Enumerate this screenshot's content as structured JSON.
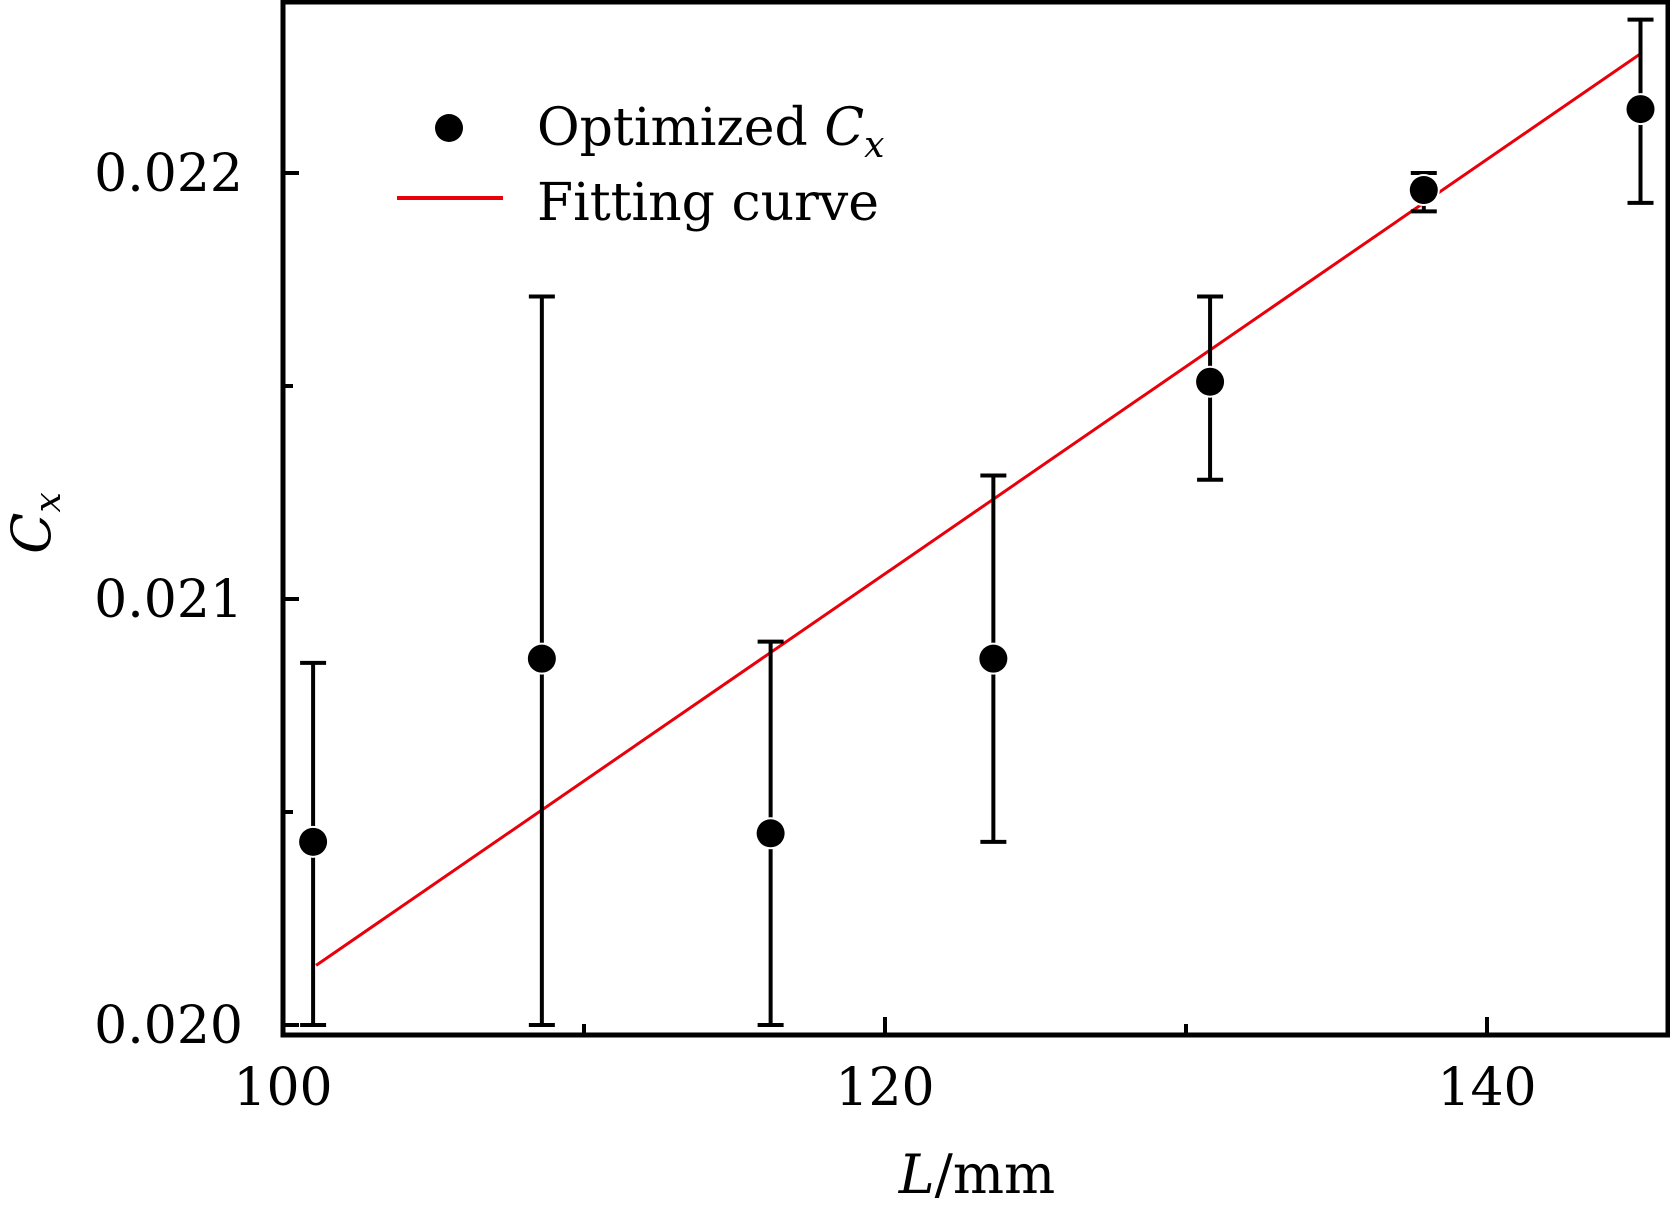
{
  "chart_data": {
    "type": "scatter",
    "title": "",
    "xlabel": {
      "main": "L",
      "unit": "/mm"
    },
    "ylabel": {
      "main": "C",
      "sub": "x"
    },
    "xlim": [
      100,
      146
    ],
    "ylim": [
      0.01998,
      0.0224
    ],
    "xticks": {
      "major": [
        100,
        120,
        140
      ],
      "minor": [
        110,
        130
      ],
      "labels": [
        "100",
        "120",
        "140"
      ]
    },
    "yticks": {
      "major": [
        0.02,
        0.021,
        0.022
      ],
      "minor": [
        0.0205,
        0.0215
      ],
      "labels": [
        "0.020",
        "0.021",
        "0.022"
      ]
    },
    "grid": false,
    "legend": {
      "placement": "top-left",
      "entries": [
        {
          "label_main": "Optimized ",
          "label_math": "C",
          "label_sub": "x",
          "marker": "filled-circle",
          "color": "#000000"
        },
        {
          "label_main": "Fitting curve",
          "marker": "line",
          "color": "#e8000b"
        }
      ]
    },
    "series": [
      {
        "name": "Optimized Cx",
        "type": "scatter-errorbar",
        "color": "#000000",
        "points": [
          {
            "x": 101.0,
            "y": 0.02043,
            "y_low": 0.02,
            "y_high": 0.02085
          },
          {
            "x": 108.6,
            "y": 0.02086,
            "y_low": 0.02,
            "y_high": 0.02171
          },
          {
            "x": 116.2,
            "y": 0.02045,
            "y_low": 0.02,
            "y_high": 0.0209
          },
          {
            "x": 123.6,
            "y": 0.02086,
            "y_low": 0.02043,
            "y_high": 0.02129
          },
          {
            "x": 130.8,
            "y": 0.02151,
            "y_low": 0.02128,
            "y_high": 0.02171
          },
          {
            "x": 137.9,
            "y": 0.02196,
            "y_low": 0.02191,
            "y_high": 0.022
          },
          {
            "x": 145.1,
            "y": 0.02215,
            "y_low": 0.02193,
            "y_high": 0.02236
          }
        ]
      },
      {
        "name": "Fitting curve",
        "type": "line",
        "color": "#e8000b",
        "x": [
          101.1,
          145.1
        ],
        "y": [
          0.02014,
          0.02228
        ]
      }
    ]
  }
}
